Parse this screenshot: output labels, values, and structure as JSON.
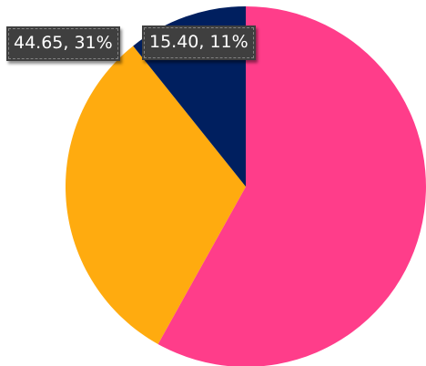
{
  "chart_data": {
    "type": "pie",
    "slices": [
      {
        "value": 83.25,
        "percent": "58%",
        "color": "#ff3d8a",
        "label": ""
      },
      {
        "value": 44.65,
        "percent": "31%",
        "color": "#ffab0f",
        "label": "44.65, 31%"
      },
      {
        "value": 15.4,
        "percent": "11%",
        "color": "#001f5f",
        "label": "15.40, 11%"
      }
    ]
  }
}
